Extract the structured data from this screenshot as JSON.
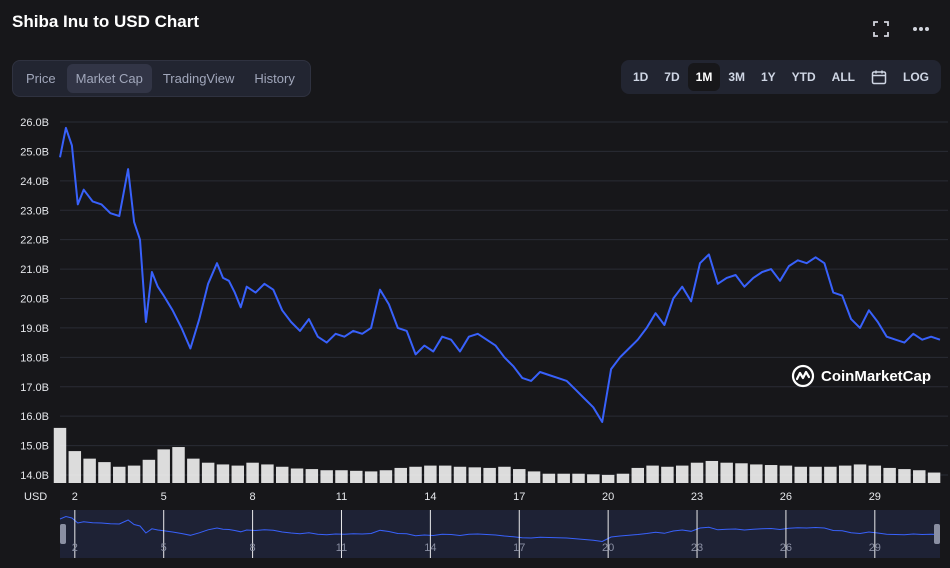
{
  "header": {
    "title": "Shiba Inu to USD Chart",
    "fullscreen_icon": "fullscreen-icon",
    "more_icon": "more-options-icon"
  },
  "tabs": [
    {
      "label": "Price",
      "active": false
    },
    {
      "label": "Market Cap",
      "active": true
    },
    {
      "label": "TradingView",
      "active": false
    },
    {
      "label": "History",
      "active": false
    }
  ],
  "ranges": {
    "items": [
      {
        "label": "1D",
        "active": false
      },
      {
        "label": "7D",
        "active": false
      },
      {
        "label": "1M",
        "active": true
      },
      {
        "label": "3M",
        "active": false
      },
      {
        "label": "1Y",
        "active": false
      },
      {
        "label": "YTD",
        "active": false
      },
      {
        "label": "ALL",
        "active": false
      }
    ],
    "calendar_icon": "calendar-icon",
    "log_label": "LOG"
  },
  "watermark": {
    "text": "CoinMarketCap",
    "icon": "coinmarketcap-logo-icon"
  },
  "colors": {
    "background": "#17171a",
    "line": "#3861fb",
    "volume": "#ffffff",
    "grid": "#2a2c35",
    "axis_text": "#e5e7eb",
    "panel": "#222531"
  },
  "chart_data": {
    "type": "line",
    "currency_label": "USD",
    "y_ticks": [
      "14.0B",
      "15.0B",
      "16.0B",
      "17.0B",
      "18.0B",
      "19.0B",
      "20.0B",
      "21.0B",
      "22.0B",
      "23.0B",
      "24.0B",
      "25.0B",
      "26.0B"
    ],
    "ylim": [
      14.0,
      26.0
    ],
    "x_ticks": [
      "2",
      "5",
      "8",
      "11",
      "14",
      "17",
      "20",
      "23",
      "26",
      "29"
    ],
    "xlim": [
      1.5,
      31.2
    ],
    "grid": true,
    "series": [
      {
        "type": "line",
        "x": [
          1.5,
          1.7,
          1.9,
          2.1,
          2.3,
          2.6,
          2.9,
          3.2,
          3.5,
          3.8,
          4.0,
          4.2,
          4.4,
          4.6,
          4.8,
          5.0,
          5.3,
          5.6,
          5.9,
          6.2,
          6.5,
          6.8,
          7.0,
          7.2,
          7.4,
          7.6,
          7.8,
          8.1,
          8.4,
          8.7,
          9.0,
          9.3,
          9.6,
          9.9,
          10.2,
          10.5,
          10.8,
          11.1,
          11.4,
          11.7,
          12.0,
          12.3,
          12.6,
          12.9,
          13.2,
          13.5,
          13.8,
          14.1,
          14.4,
          14.7,
          15.0,
          15.3,
          15.6,
          15.9,
          16.2,
          16.5,
          16.8,
          17.1,
          17.4,
          17.7,
          18.0,
          18.3,
          18.6,
          18.9,
          19.2,
          19.5,
          19.8,
          20.1,
          20.4,
          20.7,
          21.0,
          21.3,
          21.6,
          21.9,
          22.2,
          22.5,
          22.8,
          23.1,
          23.4,
          23.7,
          24.0,
          24.3,
          24.6,
          24.9,
          25.2,
          25.5,
          25.8,
          26.1,
          26.4,
          26.7,
          27.0,
          27.3,
          27.6,
          27.9,
          28.2,
          28.5,
          28.8,
          29.1,
          29.4,
          29.7,
          30.0,
          30.3,
          30.6,
          30.9,
          31.2
        ],
        "y": [
          24.8,
          25.8,
          25.2,
          23.2,
          23.7,
          23.3,
          23.2,
          22.9,
          22.8,
          24.4,
          22.6,
          22.0,
          19.2,
          20.9,
          20.4,
          20.1,
          19.6,
          19.0,
          18.3,
          19.3,
          20.5,
          21.2,
          20.7,
          20.6,
          20.2,
          19.7,
          20.4,
          20.2,
          20.5,
          20.3,
          19.6,
          19.2,
          18.9,
          19.3,
          18.7,
          18.5,
          18.8,
          18.7,
          18.9,
          18.8,
          19.0,
          20.3,
          19.8,
          19.0,
          18.9,
          18.1,
          18.4,
          18.2,
          18.7,
          18.6,
          18.2,
          18.7,
          18.8,
          18.6,
          18.4,
          18.0,
          17.7,
          17.3,
          17.2,
          17.5,
          17.4,
          17.3,
          17.2,
          16.9,
          16.6,
          16.3,
          15.8,
          17.6,
          18.0,
          18.3,
          18.6,
          19.0,
          19.5,
          19.1,
          20.0,
          20.4,
          19.9,
          21.2,
          21.5,
          20.5,
          20.7,
          20.8,
          20.4,
          20.7,
          20.9,
          21.0,
          20.6,
          21.1,
          21.3,
          21.2,
          21.4,
          21.2,
          20.2,
          20.1,
          19.3,
          19.0,
          19.6,
          19.2,
          18.7,
          18.6,
          18.5,
          18.8,
          18.6,
          18.7,
          18.6
        ]
      },
      {
        "type": "volume",
        "x": [
          1.5,
          2.0,
          2.5,
          3.0,
          3.5,
          4.0,
          4.5,
          5.0,
          5.5,
          6.0,
          6.5,
          7.0,
          7.5,
          8.0,
          8.5,
          9.0,
          9.5,
          10.0,
          10.5,
          11.0,
          11.5,
          12.0,
          12.5,
          13.0,
          13.5,
          14.0,
          14.5,
          15.0,
          15.5,
          16.0,
          16.5,
          17.0,
          17.5,
          18.0,
          18.5,
          19.0,
          19.5,
          20.0,
          20.5,
          21.0,
          21.5,
          22.0,
          22.5,
          23.0,
          23.5,
          24.0,
          24.5,
          25.0,
          25.5,
          26.0,
          26.5,
          27.0,
          27.5,
          28.0,
          28.5,
          29.0,
          29.5,
          30.0,
          30.5,
          31.0
        ],
        "values": [
          0.95,
          0.55,
          0.42,
          0.36,
          0.28,
          0.3,
          0.4,
          0.58,
          0.62,
          0.42,
          0.35,
          0.32,
          0.3,
          0.35,
          0.32,
          0.28,
          0.25,
          0.24,
          0.22,
          0.22,
          0.21,
          0.2,
          0.22,
          0.26,
          0.28,
          0.3,
          0.3,
          0.28,
          0.27,
          0.26,
          0.28,
          0.24,
          0.2,
          0.16,
          0.16,
          0.16,
          0.15,
          0.14,
          0.16,
          0.26,
          0.3,
          0.28,
          0.3,
          0.35,
          0.38,
          0.35,
          0.34,
          0.32,
          0.31,
          0.3,
          0.28,
          0.28,
          0.28,
          0.3,
          0.32,
          0.3,
          0.26,
          0.24,
          0.22,
          0.18
        ]
      }
    ],
    "navigator": {
      "x_ticks": [
        "2",
        "5",
        "8",
        "11",
        "14",
        "17",
        "20",
        "23",
        "26",
        "29"
      ]
    }
  }
}
